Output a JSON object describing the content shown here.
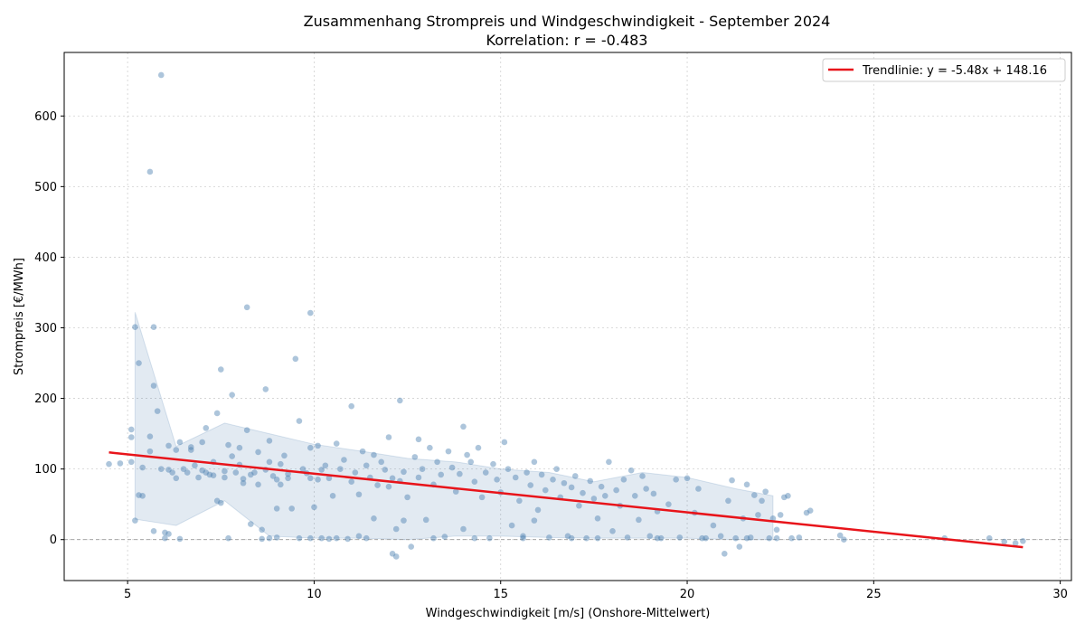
{
  "chart_data": {
    "type": "scatter",
    "title": "Zusammenhang Strompreis und Windgeschwindigkeit - September 2024",
    "subtitle": "Korrelation: r = -0.483",
    "xlabel": "Windgeschwindigkeit [m/s] (Onshore-Mittelwert)",
    "ylabel": "Strompreis [€/MWh]",
    "xlim": [
      3.3,
      30.3
    ],
    "ylim": [
      -58,
      690
    ],
    "xticks": [
      5,
      10,
      15,
      20,
      25,
      30
    ],
    "yticks": [
      0,
      100,
      200,
      300,
      400,
      500,
      600
    ],
    "grid": true,
    "legend_position": "top-right",
    "colors": {
      "points": "#4a7fb0",
      "trend": "#e8141a",
      "band": "#4a7fb0",
      "zero_line": "#999999"
    },
    "trendline": {
      "name": "Trendlinie: y = -5.48x + 148.16",
      "slope": -5.48,
      "intercept": 148.16,
      "x_range": [
        4.5,
        29.0
      ]
    },
    "zero_line": 0,
    "band": {
      "x": [
        5.2,
        6.3,
        7.6,
        8.8,
        10.0,
        11.3,
        12.5,
        13.8,
        15.0,
        16.3,
        17.5,
        18.8,
        20.0,
        21.3,
        22.3
      ],
      "upper": [
        322,
        132,
        165,
        150,
        135,
        125,
        115,
        110,
        100,
        95,
        82,
        95,
        88,
        72,
        62
      ],
      "lower": [
        29,
        20,
        55,
        5,
        2,
        2,
        0,
        5,
        5,
        3,
        2,
        2,
        2,
        0,
        0
      ]
    },
    "points": [
      [
        4.5,
        107
      ],
      [
        4.8,
        108
      ],
      [
        5.1,
        156
      ],
      [
        5.1,
        145
      ],
      [
        5.1,
        110
      ],
      [
        5.2,
        27
      ],
      [
        5.2,
        301
      ],
      [
        5.3,
        250
      ],
      [
        5.3,
        63
      ],
      [
        5.4,
        62
      ],
      [
        5.4,
        102
      ],
      [
        5.6,
        146
      ],
      [
        5.6,
        125
      ],
      [
        5.7,
        12
      ],
      [
        5.7,
        301
      ],
      [
        5.7,
        218
      ],
      [
        5.6,
        521
      ],
      [
        5.9,
        658
      ],
      [
        5.8,
        182
      ],
      [
        5.9,
        100
      ],
      [
        6.0,
        2
      ],
      [
        6.0,
        10
      ],
      [
        6.1,
        8
      ],
      [
        6.1,
        99
      ],
      [
        6.1,
        133
      ],
      [
        6.2,
        95
      ],
      [
        6.3,
        127
      ],
      [
        6.3,
        87
      ],
      [
        6.4,
        138
      ],
      [
        6.4,
        1
      ],
      [
        6.5,
        100
      ],
      [
        6.6,
        95
      ],
      [
        6.7,
        131
      ],
      [
        6.7,
        127
      ],
      [
        6.8,
        105
      ],
      [
        6.9,
        88
      ],
      [
        7.0,
        98
      ],
      [
        7.0,
        138
      ],
      [
        7.1,
        158
      ],
      [
        7.1,
        95
      ],
      [
        7.2,
        92
      ],
      [
        7.3,
        91
      ],
      [
        7.3,
        110
      ],
      [
        7.4,
        179
      ],
      [
        7.4,
        55
      ],
      [
        7.5,
        241
      ],
      [
        7.5,
        52
      ],
      [
        7.6,
        88
      ],
      [
        7.6,
        97
      ],
      [
        7.7,
        134
      ],
      [
        7.7,
        2
      ],
      [
        7.8,
        205
      ],
      [
        7.8,
        118
      ],
      [
        7.9,
        95
      ],
      [
        8.0,
        130
      ],
      [
        8.0,
        106
      ],
      [
        8.1,
        86
      ],
      [
        8.1,
        80
      ],
      [
        8.2,
        329
      ],
      [
        8.2,
        155
      ],
      [
        8.3,
        92
      ],
      [
        8.3,
        22
      ],
      [
        8.4,
        95
      ],
      [
        8.5,
        124
      ],
      [
        8.5,
        78
      ],
      [
        8.6,
        14
      ],
      [
        8.6,
        1
      ],
      [
        8.7,
        213
      ],
      [
        8.7,
        99
      ],
      [
        8.8,
        110
      ],
      [
        8.8,
        140
      ],
      [
        8.9,
        90
      ],
      [
        9.0,
        85
      ],
      [
        9.0,
        3
      ],
      [
        9.0,
        44
      ],
      [
        9.1,
        107
      ],
      [
        9.1,
        78
      ],
      [
        9.2,
        119
      ],
      [
        9.3,
        93
      ],
      [
        9.3,
        87
      ],
      [
        9.4,
        44
      ],
      [
        9.5,
        256
      ],
      [
        9.6,
        168
      ],
      [
        9.6,
        2
      ],
      [
        9.7,
        100
      ],
      [
        9.8,
        94
      ],
      [
        9.9,
        130
      ],
      [
        9.9,
        87
      ],
      [
        9.9,
        321
      ],
      [
        10.0,
        46
      ],
      [
        10.1,
        133
      ],
      [
        10.1,
        85
      ],
      [
        10.2,
        99
      ],
      [
        10.3,
        105
      ],
      [
        10.4,
        1
      ],
      [
        10.4,
        87
      ],
      [
        10.5,
        62
      ],
      [
        10.6,
        136
      ],
      [
        10.7,
        100
      ],
      [
        10.8,
        113
      ],
      [
        10.9,
        1
      ],
      [
        11.0,
        189
      ],
      [
        11.0,
        82
      ],
      [
        11.1,
        95
      ],
      [
        11.2,
        64
      ],
      [
        11.2,
        5
      ],
      [
        11.3,
        125
      ],
      [
        11.4,
        105
      ],
      [
        11.5,
        88
      ],
      [
        11.6,
        120
      ],
      [
        11.6,
        30
      ],
      [
        11.7,
        77
      ],
      [
        11.8,
        110
      ],
      [
        11.9,
        99
      ],
      [
        12.0,
        145
      ],
      [
        12.0,
        75
      ],
      [
        12.1,
        87
      ],
      [
        12.2,
        15
      ],
      [
        12.3,
        197
      ],
      [
        12.3,
        83
      ],
      [
        12.4,
        96
      ],
      [
        12.5,
        60
      ],
      [
        12.6,
        -10
      ],
      [
        12.7,
        117
      ],
      [
        12.8,
        142
      ],
      [
        12.8,
        88
      ],
      [
        12.9,
        100
      ],
      [
        13.0,
        28
      ],
      [
        13.1,
        130
      ],
      [
        13.2,
        78
      ],
      [
        13.3,
        110
      ],
      [
        13.4,
        92
      ],
      [
        13.5,
        4
      ],
      [
        13.6,
        125
      ],
      [
        13.7,
        102
      ],
      [
        13.8,
        68
      ],
      [
        13.9,
        93
      ],
      [
        14.0,
        160
      ],
      [
        14.0,
        15
      ],
      [
        14.1,
        120
      ],
      [
        14.2,
        110
      ],
      [
        14.3,
        82
      ],
      [
        14.4,
        130
      ],
      [
        14.5,
        60
      ],
      [
        14.6,
        95
      ],
      [
        14.7,
        2
      ],
      [
        14.8,
        107
      ],
      [
        14.9,
        85
      ],
      [
        15.0,
        67
      ],
      [
        15.1,
        138
      ],
      [
        15.2,
        100
      ],
      [
        15.3,
        20
      ],
      [
        15.4,
        88
      ],
      [
        15.5,
        55
      ],
      [
        15.6,
        5
      ],
      [
        15.7,
        95
      ],
      [
        15.8,
        77
      ],
      [
        15.9,
        110
      ],
      [
        16.0,
        42
      ],
      [
        16.1,
        92
      ],
      [
        16.2,
        70
      ],
      [
        16.3,
        3
      ],
      [
        16.4,
        85
      ],
      [
        16.5,
        100
      ],
      [
        16.6,
        60
      ],
      [
        16.7,
        80
      ],
      [
        16.8,
        5
      ],
      [
        16.9,
        74
      ],
      [
        17.0,
        90
      ],
      [
        17.1,
        48
      ],
      [
        17.2,
        66
      ],
      [
        17.3,
        2
      ],
      [
        17.4,
        83
      ],
      [
        17.5,
        58
      ],
      [
        17.6,
        30
      ],
      [
        17.7,
        75
      ],
      [
        17.8,
        62
      ],
      [
        17.9,
        110
      ],
      [
        18.0,
        12
      ],
      [
        18.1,
        70
      ],
      [
        18.2,
        48
      ],
      [
        18.3,
        85
      ],
      [
        18.4,
        3
      ],
      [
        18.5,
        98
      ],
      [
        18.6,
        62
      ],
      [
        18.7,
        28
      ],
      [
        18.8,
        90
      ],
      [
        18.9,
        72
      ],
      [
        19.0,
        5
      ],
      [
        19.1,
        65
      ],
      [
        19.2,
        40
      ],
      [
        19.3,
        2
      ],
      [
        19.5,
        50
      ],
      [
        19.7,
        85
      ],
      [
        19.8,
        3
      ],
      [
        20.0,
        87
      ],
      [
        20.2,
        38
      ],
      [
        20.3,
        72
      ],
      [
        20.5,
        2
      ],
      [
        20.7,
        20
      ],
      [
        20.9,
        5
      ],
      [
        21.0,
        -20
      ],
      [
        21.1,
        55
      ],
      [
        21.2,
        84
      ],
      [
        21.3,
        2
      ],
      [
        21.4,
        -10
      ],
      [
        21.5,
        30
      ],
      [
        21.6,
        78
      ],
      [
        21.7,
        3
      ],
      [
        21.8,
        63
      ],
      [
        21.9,
        35
      ],
      [
        22.0,
        55
      ],
      [
        22.1,
        68
      ],
      [
        22.2,
        2
      ],
      [
        22.3,
        30
      ],
      [
        22.4,
        14
      ],
      [
        22.5,
        35
      ],
      [
        22.6,
        60
      ],
      [
        22.7,
        62
      ],
      [
        22.8,
        2
      ],
      [
        23.0,
        3
      ],
      [
        23.2,
        38
      ],
      [
        23.3,
        41
      ],
      [
        24.1,
        6
      ],
      [
        24.2,
        0
      ],
      [
        26.9,
        2
      ],
      [
        28.1,
        2
      ],
      [
        28.5,
        -3
      ],
      [
        28.8,
        -5
      ],
      [
        29.0,
        -2
      ],
      [
        12.1,
        -20
      ],
      [
        12.2,
        -24
      ],
      [
        10.6,
        2
      ],
      [
        11.4,
        2
      ],
      [
        13.2,
        2
      ],
      [
        14.3,
        2
      ],
      [
        15.6,
        2
      ],
      [
        16.9,
        2
      ],
      [
        17.6,
        2
      ],
      [
        19.2,
        2
      ],
      [
        20.4,
        2
      ],
      [
        21.6,
        2
      ],
      [
        22.4,
        2
      ],
      [
        9.9,
        2
      ],
      [
        8.8,
        2
      ],
      [
        10.2,
        2
      ],
      [
        12.4,
        27
      ],
      [
        15.9,
        27
      ]
    ]
  }
}
